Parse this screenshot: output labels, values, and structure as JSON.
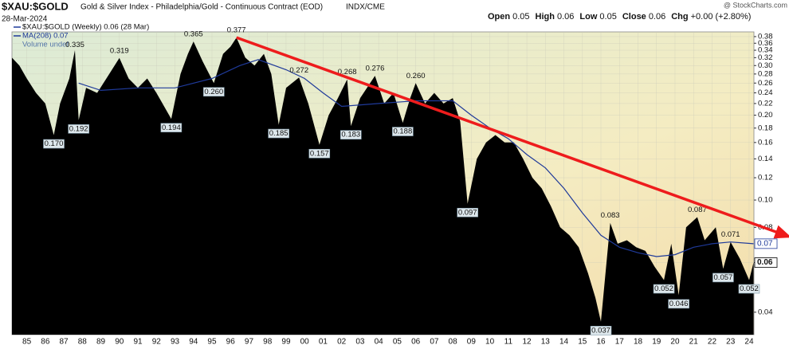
{
  "header": {
    "symbol": "$XAU:$GOLD",
    "description": "Gold & Silver Index - Philadelphia/Gold - Continuous Contract (EOD)",
    "exchange": "INDX/CME",
    "date": "28-Mar-2024",
    "credit": "@ StockCharts.com",
    "quote": [
      {
        "label": "Open",
        "value": "0.05"
      },
      {
        "label": "High",
        "value": "0.06"
      },
      {
        "label": "Low",
        "value": "0.05"
      },
      {
        "label": "Close",
        "value": "0.06"
      },
      {
        "label": "Chg",
        "value": "+0.00 (+2.80%)"
      }
    ]
  },
  "chart_data": {
    "type": "area",
    "log": true,
    "grid": true,
    "xlim": [
      1984.2,
      2024.26
    ],
    "ylim": [
      0.0333,
      0.395
    ],
    "xticks": [
      {
        "value": 1985,
        "label": "85"
      },
      {
        "value": 1986,
        "label": "86"
      },
      {
        "value": 1987,
        "label": "87"
      },
      {
        "value": 1988,
        "label": "88"
      },
      {
        "value": 1989,
        "label": "89"
      },
      {
        "value": 1990,
        "label": "90"
      },
      {
        "value": 1991,
        "label": "91"
      },
      {
        "value": 1992,
        "label": "92"
      },
      {
        "value": 1993,
        "label": "93"
      },
      {
        "value": 1994,
        "label": "94"
      },
      {
        "value": 1995,
        "label": "95"
      },
      {
        "value": 1996,
        "label": "96"
      },
      {
        "value": 1997,
        "label": "97"
      },
      {
        "value": 1998,
        "label": "98"
      },
      {
        "value": 1999,
        "label": "99"
      },
      {
        "value": 2000,
        "label": "00"
      },
      {
        "value": 2001,
        "label": "01"
      },
      {
        "value": 2002,
        "label": "02"
      },
      {
        "value": 2003,
        "label": "03"
      },
      {
        "value": 2004,
        "label": "04"
      },
      {
        "value": 2005,
        "label": "05"
      },
      {
        "value": 2006,
        "label": "06"
      },
      {
        "value": 2007,
        "label": "07"
      },
      {
        "value": 2008,
        "label": "08"
      },
      {
        "value": 2009,
        "label": "09"
      },
      {
        "value": 2010,
        "label": "10"
      },
      {
        "value": 2011,
        "label": "11"
      },
      {
        "value": 2012,
        "label": "12"
      },
      {
        "value": 2013,
        "label": "13"
      },
      {
        "value": 2014,
        "label": "14"
      },
      {
        "value": 2015,
        "label": "15"
      },
      {
        "value": 2016,
        "label": "16"
      },
      {
        "value": 2017,
        "label": "17"
      },
      {
        "value": 2018,
        "label": "18"
      },
      {
        "value": 2019,
        "label": "19"
      },
      {
        "value": 2020,
        "label": "20"
      },
      {
        "value": 2021,
        "label": "21"
      },
      {
        "value": 2022,
        "label": "22"
      },
      {
        "value": 2023,
        "label": "23"
      },
      {
        "value": 2024,
        "label": "24"
      }
    ],
    "yticks": [
      0.04,
      0.06,
      0.08,
      {
        "value": 0.1,
        "label": "0.10"
      },
      0.12,
      0.14,
      0.16,
      0.18,
      {
        "value": 0.2,
        "label": "0.20"
      },
      0.22,
      0.24,
      0.26,
      0.28,
      {
        "value": 0.3,
        "label": "0.30"
      },
      0.32,
      0.34,
      0.36,
      0.38
    ],
    "series": [
      {
        "name": "$XAU:$GOLD (Weekly) 0.06 (28 Mar)",
        "color": "#000000",
        "x": [
          1984.2,
          1984.6,
          1985.0,
          1985.5,
          1986.0,
          1986.46,
          1986.8,
          1987.3,
          1987.6,
          1987.8,
          1988.2,
          1988.8,
          1989.3,
          1990.0,
          1990.5,
          1991.0,
          1991.5,
          1992.0,
          1992.8,
          1993.3,
          1993.7,
          1994.0,
          1994.5,
          1995.1,
          1995.6,
          1996.0,
          1996.32,
          1996.8,
          1997.3,
          1997.8,
          1998.2,
          1998.6,
          1999.0,
          1999.7,
          2000.2,
          2000.8,
          2001.3,
          2001.8,
          2002.3,
          2002.5,
          2003.0,
          2003.8,
          2004.3,
          2004.8,
          2005.3,
          2005.7,
          2006.0,
          2006.5,
          2007.0,
          2007.5,
          2008.0,
          2008.4,
          2008.8,
          2009.3,
          2009.8,
          2010.3,
          2010.8,
          2011.3,
          2011.8,
          2012.3,
          2012.8,
          2013.3,
          2013.8,
          2014.3,
          2014.8,
          2015.3,
          2015.7,
          2016.0,
          2016.5,
          2016.9,
          2017.4,
          2017.9,
          2018.4,
          2018.9,
          2019.4,
          2019.8,
          2020.2,
          2020.6,
          2021.2,
          2021.6,
          2022.2,
          2022.6,
          2023.0,
          2023.5,
          2024.0,
          2024.24
        ],
        "values": [
          0.32,
          0.3,
          0.27,
          0.24,
          0.22,
          0.17,
          0.22,
          0.27,
          0.34,
          0.192,
          0.25,
          0.24,
          0.27,
          0.319,
          0.27,
          0.25,
          0.27,
          0.24,
          0.194,
          0.28,
          0.33,
          0.365,
          0.31,
          0.26,
          0.33,
          0.35,
          0.377,
          0.32,
          0.3,
          0.33,
          0.28,
          0.185,
          0.25,
          0.272,
          0.22,
          0.157,
          0.2,
          0.23,
          0.268,
          0.183,
          0.23,
          0.276,
          0.22,
          0.24,
          0.188,
          0.23,
          0.26,
          0.22,
          0.24,
          0.22,
          0.23,
          0.19,
          0.097,
          0.14,
          0.16,
          0.17,
          0.16,
          0.16,
          0.14,
          0.12,
          0.11,
          0.095,
          0.08,
          0.075,
          0.068,
          0.055,
          0.045,
          0.037,
          0.083,
          0.07,
          0.072,
          0.068,
          0.066,
          0.058,
          0.052,
          0.07,
          0.046,
          0.08,
          0.087,
          0.072,
          0.08,
          0.057,
          0.071,
          0.062,
          0.052,
          0.06
        ]
      },
      {
        "name": "MA(208) 0.07",
        "color": "#1f3a9a",
        "x": [
          1987.8,
          1989,
          1991,
          1993,
          1995,
          1996.5,
          1997.5,
          1999,
          2000,
          2001,
          2002,
          2004,
          2006,
          2008,
          2009,
          2010,
          2011,
          2012,
          2013,
          2014,
          2015,
          2016,
          2017,
          2018,
          2019,
          2020,
          2021,
          2022,
          2023,
          2024.24
        ],
        "values": [
          0.26,
          0.245,
          0.25,
          0.25,
          0.27,
          0.3,
          0.315,
          0.29,
          0.27,
          0.24,
          0.215,
          0.22,
          0.225,
          0.225,
          0.2,
          0.18,
          0.165,
          0.145,
          0.13,
          0.11,
          0.09,
          0.075,
          0.068,
          0.065,
          0.063,
          0.064,
          0.068,
          0.07,
          0.071,
          0.07
        ]
      }
    ],
    "legend_extra": "Volume undef",
    "ma_label": "0.07",
    "close_label": "0.06",
    "trend_line": {
      "color": "#ee1c1c",
      "x": [
        1996.32,
        2026.15
      ],
      "values": [
        0.377,
        0.0742
      ]
    },
    "annotations": [
      {
        "x": 1986.46,
        "value": 0.17,
        "label": "0.170"
      },
      {
        "x": 1987.6,
        "value": 0.335,
        "label": "0.335"
      },
      {
        "x": 1987.8,
        "value": 0.192,
        "label": "0.192"
      },
      {
        "x": 1990.0,
        "value": 0.319,
        "label": "0.319"
      },
      {
        "x": 1992.8,
        "value": 0.194,
        "label": "0.194"
      },
      {
        "x": 1994.0,
        "value": 0.365,
        "label": "0.365"
      },
      {
        "x": 1995.1,
        "value": 0.26,
        "label": "0.260"
      },
      {
        "x": 1996.32,
        "value": 0.377,
        "label": "0.377"
      },
      {
        "x": 1998.6,
        "value": 0.185,
        "label": "0.185"
      },
      {
        "x": 1999.7,
        "value": 0.272,
        "label": "0.272"
      },
      {
        "x": 2000.8,
        "value": 0.157,
        "label": "0.157"
      },
      {
        "x": 2002.3,
        "value": 0.268,
        "label": "0.268"
      },
      {
        "x": 2002.5,
        "value": 0.183,
        "label": "0.183"
      },
      {
        "x": 2003.8,
        "value": 0.276,
        "label": "0.276"
      },
      {
        "x": 2005.3,
        "value": 0.188,
        "label": "0.188"
      },
      {
        "x": 2006.0,
        "value": 0.26,
        "label": "0.260"
      },
      {
        "x": 2008.8,
        "value": 0.097,
        "label": "0.097"
      },
      {
        "x": 2016.0,
        "value": 0.037,
        "label": "0.037"
      },
      {
        "x": 2016.5,
        "value": 0.083,
        "label": "0.083"
      },
      {
        "x": 2019.4,
        "value": 0.052,
        "label": "0.052"
      },
      {
        "x": 2020.2,
        "value": 0.046,
        "label": "0.046"
      },
      {
        "x": 2021.2,
        "value": 0.087,
        "label": "0.087"
      },
      {
        "x": 2022.6,
        "value": 0.057,
        "label": "0.057"
      },
      {
        "x": 2023.0,
        "value": 0.071,
        "label": "0.071"
      },
      {
        "x": 2024.0,
        "value": 0.052,
        "label": "0.052"
      }
    ]
  }
}
